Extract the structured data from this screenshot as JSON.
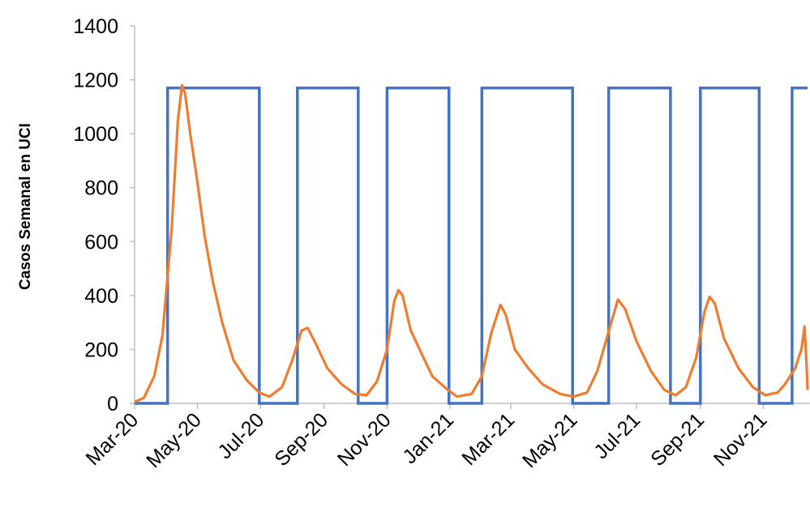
{
  "chart_data": {
    "type": "line",
    "title": "",
    "xlabel": "",
    "ylabel": "Casos Semanal en UCI",
    "ylim": [
      0,
      1400
    ],
    "yticks": [
      "0",
      "200",
      "400",
      "600",
      "800",
      "1000",
      "1200",
      "1400"
    ],
    "xticks": [
      {
        "date": "2020-03-01",
        "label": "Mar-20"
      },
      {
        "date": "2020-05-01",
        "label": "May-20"
      },
      {
        "date": "2020-07-01",
        "label": "Jul-20"
      },
      {
        "date": "2020-09-01",
        "label": "Sep-20"
      },
      {
        "date": "2020-11-01",
        "label": "Nov-20"
      },
      {
        "date": "2021-01-01",
        "label": "Jan-21"
      },
      {
        "date": "2021-03-01",
        "label": "Mar-21"
      },
      {
        "date": "2021-05-01",
        "label": "May-21"
      },
      {
        "date": "2021-07-01",
        "label": "Jul-21"
      },
      {
        "date": "2021-09-01",
        "label": "Sep-21"
      },
      {
        "date": "2021-11-01",
        "label": "Nov-21"
      }
    ],
    "xlim": [
      "2020-03-01",
      "2021-12-14"
    ],
    "grid": false,
    "legend": "none",
    "series": [
      {
        "color": "#4472C4",
        "style": "step",
        "points": [
          [
            "2020-03-01",
            0
          ],
          [
            "2020-04-02",
            0
          ],
          [
            "2020-04-02",
            1170
          ],
          [
            "2020-06-30",
            1170
          ],
          [
            "2020-06-30",
            0
          ],
          [
            "2020-08-06",
            0
          ],
          [
            "2020-08-06",
            1170
          ],
          [
            "2020-10-04",
            1170
          ],
          [
            "2020-10-04",
            0
          ],
          [
            "2020-11-01",
            0
          ],
          [
            "2020-11-01",
            1170
          ],
          [
            "2020-12-31",
            1170
          ],
          [
            "2020-12-31",
            0
          ],
          [
            "2021-02-01",
            0
          ],
          [
            "2021-02-01",
            1170
          ],
          [
            "2021-04-30",
            1170
          ],
          [
            "2021-04-30",
            0
          ],
          [
            "2021-06-04",
            0
          ],
          [
            "2021-06-04",
            1170
          ],
          [
            "2021-08-03",
            1170
          ],
          [
            "2021-08-03",
            0
          ],
          [
            "2021-09-01",
            0
          ],
          [
            "2021-09-01",
            1170
          ],
          [
            "2021-10-28",
            1170
          ],
          [
            "2021-10-28",
            0
          ],
          [
            "2021-11-29",
            0
          ],
          [
            "2021-11-29",
            1170
          ],
          [
            "2021-12-14",
            1170
          ]
        ]
      },
      {
        "color": "#ED7D31",
        "style": "line",
        "points": [
          [
            "2020-03-01",
            5
          ],
          [
            "2020-03-10",
            20
          ],
          [
            "2020-03-20",
            100
          ],
          [
            "2020-03-28",
            250
          ],
          [
            "2020-04-06",
            650
          ],
          [
            "2020-04-12",
            1050
          ],
          [
            "2020-04-16",
            1180
          ],
          [
            "2020-04-19",
            1150
          ],
          [
            "2020-04-24",
            1000
          ],
          [
            "2020-05-01",
            820
          ],
          [
            "2020-05-08",
            620
          ],
          [
            "2020-05-16",
            450
          ],
          [
            "2020-05-25",
            300
          ],
          [
            "2020-06-05",
            160
          ],
          [
            "2020-06-18",
            85
          ],
          [
            "2020-06-30",
            40
          ],
          [
            "2020-07-10",
            25
          ],
          [
            "2020-07-22",
            60
          ],
          [
            "2020-08-01",
            160
          ],
          [
            "2020-08-10",
            270
          ],
          [
            "2020-08-16",
            280
          ],
          [
            "2020-08-24",
            220
          ],
          [
            "2020-09-04",
            130
          ],
          [
            "2020-09-18",
            70
          ],
          [
            "2020-10-01",
            35
          ],
          [
            "2020-10-12",
            30
          ],
          [
            "2020-10-22",
            80
          ],
          [
            "2020-11-01",
            200
          ],
          [
            "2020-11-08",
            380
          ],
          [
            "2020-11-12",
            420
          ],
          [
            "2020-11-16",
            400
          ],
          [
            "2020-11-24",
            270
          ],
          [
            "2020-12-05",
            180
          ],
          [
            "2020-12-15",
            100
          ],
          [
            "2020-12-30",
            50
          ],
          [
            "2021-01-08",
            25
          ],
          [
            "2021-01-22",
            35
          ],
          [
            "2021-02-01",
            100
          ],
          [
            "2021-02-10",
            260
          ],
          [
            "2021-02-19",
            365
          ],
          [
            "2021-02-24",
            330
          ],
          [
            "2021-03-05",
            200
          ],
          [
            "2021-03-18",
            130
          ],
          [
            "2021-04-01",
            70
          ],
          [
            "2021-04-18",
            35
          ],
          [
            "2021-05-01",
            25
          ],
          [
            "2021-05-14",
            40
          ],
          [
            "2021-05-24",
            120
          ],
          [
            "2021-06-05",
            280
          ],
          [
            "2021-06-13",
            385
          ],
          [
            "2021-06-20",
            350
          ],
          [
            "2021-07-01",
            230
          ],
          [
            "2021-07-15",
            120
          ],
          [
            "2021-07-28",
            50
          ],
          [
            "2021-08-08",
            30
          ],
          [
            "2021-08-18",
            60
          ],
          [
            "2021-08-28",
            170
          ],
          [
            "2021-09-05",
            340
          ],
          [
            "2021-09-10",
            395
          ],
          [
            "2021-09-15",
            370
          ],
          [
            "2021-09-24",
            240
          ],
          [
            "2021-10-08",
            130
          ],
          [
            "2021-10-22",
            60
          ],
          [
            "2021-11-03",
            30
          ],
          [
            "2021-11-15",
            40
          ],
          [
            "2021-11-22",
            70
          ],
          [
            "2021-12-02",
            130
          ],
          [
            "2021-12-08",
            200
          ],
          [
            "2021-12-11",
            285
          ],
          [
            "2021-12-13",
            150
          ],
          [
            "2021-12-14",
            50
          ]
        ]
      }
    ]
  }
}
